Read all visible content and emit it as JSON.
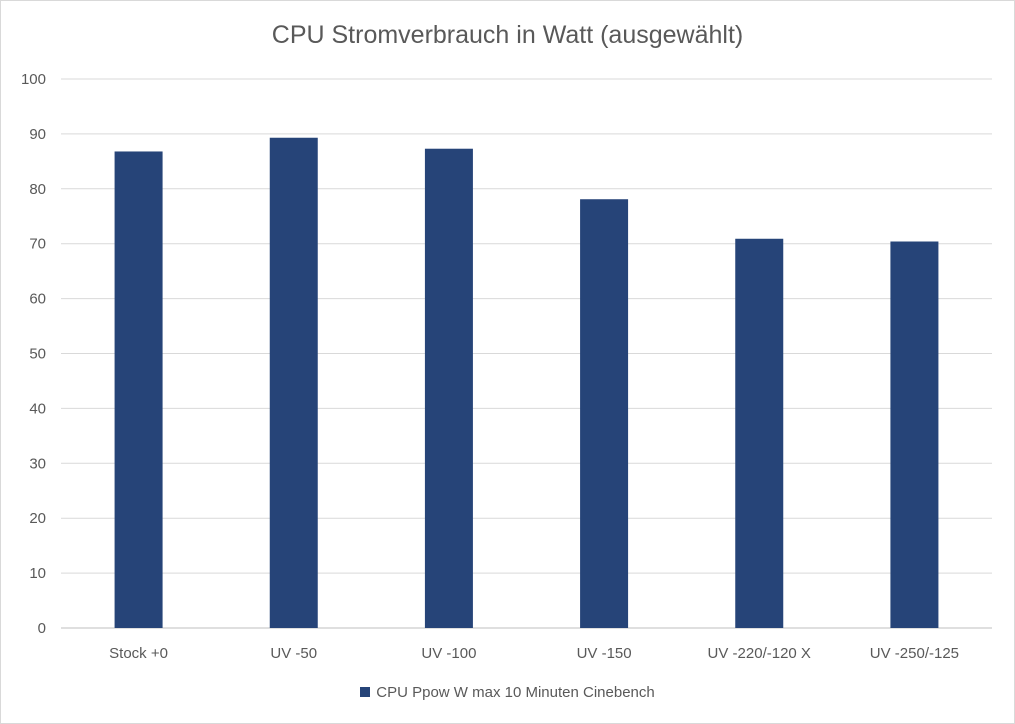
{
  "chart_data": {
    "type": "bar",
    "title": "CPU Stromverbrauch in Watt (ausgewählt)",
    "xlabel": "",
    "ylabel": "",
    "categories": [
      "Stock +0",
      "UV -50",
      "UV -100",
      "UV -150",
      "UV -220/-120 X",
      "UV -250/-125"
    ],
    "series": [
      {
        "name": "CPU Ppow W max 10 Minuten Cinebench",
        "values": [
          86.8,
          89.3,
          87.3,
          78.1,
          70.9,
          70.4
        ],
        "color": "#264478"
      }
    ],
    "ylim": [
      0,
      100
    ],
    "yticks": [
      0,
      10,
      20,
      30,
      40,
      50,
      60,
      70,
      80,
      90,
      100
    ],
    "grid": true,
    "legend_position": "bottom"
  }
}
